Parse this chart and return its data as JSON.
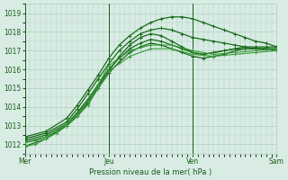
{
  "xlabel": "Pression niveau de la mer( hPa )",
  "bg_color": "#d8ece4",
  "grid_color": "#b0cfbf",
  "line_colors": [
    "#1a6b1a",
    "#1a6b1a",
    "#1a6b1a",
    "#1a6b1a",
    "#1a6b1a",
    "#2d8b2d",
    "#2d8b2d"
  ],
  "ylim": [
    1011.5,
    1019.5
  ],
  "yticks": [
    1012,
    1013,
    1014,
    1015,
    1016,
    1017,
    1018,
    1019
  ],
  "xtick_labels": [
    "Mer",
    "Jeu",
    "Ven",
    "Sam"
  ],
  "xtick_positions": [
    0,
    96,
    192,
    288
  ],
  "series": [
    {
      "x": [
        0,
        24,
        48,
        60,
        72,
        84,
        96,
        108,
        120,
        132,
        144,
        156,
        168,
        180,
        192,
        204,
        216,
        228,
        240,
        252,
        264,
        276,
        288
      ],
      "y": [
        1011.9,
        1012.3,
        1013.0,
        1013.5,
        1014.2,
        1015.0,
        1015.8,
        1016.4,
        1016.9,
        1017.2,
        1017.4,
        1017.3,
        1017.1,
        1016.9,
        1016.7,
        1016.6,
        1016.7,
        1016.8,
        1017.0,
        1017.1,
        1017.1,
        1017.1,
        1017.1
      ],
      "lw": 0.9,
      "color": "#1a6b1a"
    },
    {
      "x": [
        0,
        24,
        48,
        60,
        72,
        84,
        96,
        108,
        120,
        132,
        144,
        156,
        168,
        180,
        192,
        204,
        216,
        228,
        240,
        252,
        264,
        276,
        288
      ],
      "y": [
        1012.2,
        1012.5,
        1013.1,
        1013.7,
        1014.4,
        1015.2,
        1016.0,
        1016.6,
        1017.1,
        1017.4,
        1017.6,
        1017.5,
        1017.3,
        1017.1,
        1016.9,
        1016.8,
        1016.9,
        1017.0,
        1017.1,
        1017.2,
        1017.2,
        1017.2,
        1017.2
      ],
      "lw": 0.9,
      "color": "#1a6b1a"
    },
    {
      "x": [
        0,
        24,
        48,
        60,
        72,
        84,
        96,
        108,
        120,
        132,
        144,
        156,
        168,
        180,
        192,
        204,
        216,
        228,
        240,
        252,
        264,
        276,
        288
      ],
      "y": [
        1012.1,
        1012.4,
        1013.0,
        1013.6,
        1014.3,
        1015.1,
        1015.9,
        1016.7,
        1017.3,
        1017.7,
        1017.9,
        1017.8,
        1017.5,
        1017.2,
        1016.9,
        1016.8,
        1016.9,
        1017.0,
        1017.1,
        1017.1,
        1017.1,
        1017.1,
        1017.1
      ],
      "lw": 0.9,
      "color": "#1a6b1a"
    },
    {
      "x": [
        0,
        24,
        48,
        60,
        72,
        84,
        96,
        108,
        120,
        132,
        144,
        156,
        168,
        180,
        192,
        204,
        216,
        228,
        240,
        252,
        264,
        276,
        288
      ],
      "y": [
        1012.3,
        1012.6,
        1013.2,
        1013.9,
        1014.7,
        1015.5,
        1016.3,
        1017.0,
        1017.5,
        1017.9,
        1018.1,
        1018.2,
        1018.1,
        1017.9,
        1017.7,
        1017.6,
        1017.5,
        1017.4,
        1017.3,
        1017.2,
        1017.1,
        1017.1,
        1017.0
      ],
      "lw": 0.9,
      "color": "#1a6b1a"
    },
    {
      "x": [
        0,
        24,
        48,
        60,
        72,
        84,
        96,
        108,
        120,
        132,
        144,
        156,
        168,
        180,
        192,
        204,
        216,
        228,
        240,
        252,
        264,
        276,
        288
      ],
      "y": [
        1012.4,
        1012.7,
        1013.4,
        1014.1,
        1014.9,
        1015.7,
        1016.6,
        1017.3,
        1017.8,
        1018.2,
        1018.5,
        1018.7,
        1018.8,
        1018.8,
        1018.7,
        1018.5,
        1018.3,
        1018.1,
        1017.9,
        1017.7,
        1017.5,
        1017.4,
        1017.2
      ],
      "lw": 0.9,
      "color": "#1a6b1a"
    },
    {
      "x": [
        0,
        12,
        24,
        36,
        48,
        60,
        72,
        84,
        96,
        120,
        144,
        168,
        192,
        216,
        240,
        264,
        288
      ],
      "y": [
        1012.1,
        1012.2,
        1012.4,
        1012.7,
        1013.1,
        1013.6,
        1014.3,
        1015.2,
        1016.2,
        1017.0,
        1017.3,
        1017.3,
        1017.0,
        1016.8,
        1016.9,
        1017.0,
        1017.1
      ],
      "lw": 0.8,
      "color": "#3a9a3a"
    },
    {
      "x": [
        0,
        12,
        24,
        36,
        48,
        60,
        72,
        84,
        96,
        120,
        144,
        168,
        192,
        216,
        240,
        264,
        288
      ],
      "y": [
        1011.9,
        1012.0,
        1012.3,
        1012.6,
        1013.0,
        1013.5,
        1014.1,
        1015.0,
        1015.9,
        1016.7,
        1017.1,
        1017.1,
        1016.8,
        1016.7,
        1016.8,
        1016.9,
        1017.0
      ],
      "lw": 0.8,
      "color": "#3a9a3a"
    }
  ]
}
